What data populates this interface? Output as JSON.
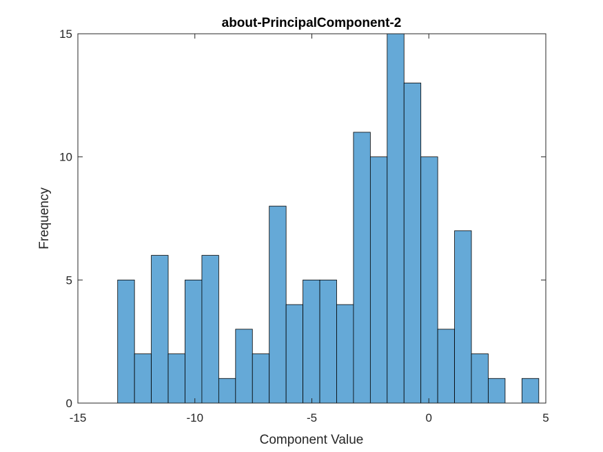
{
  "chart_data": {
    "type": "bar",
    "title": "about-PrincipalComponent-2",
    "xlabel": "Component Value",
    "ylabel": "Frequency",
    "xlim": [
      -15,
      5
    ],
    "ylim": [
      0,
      15
    ],
    "xticks": [
      "-15",
      "-10",
      "-5",
      "0",
      "5"
    ],
    "yticks": [
      "0",
      "5",
      "10",
      "15"
    ],
    "bin_width": 0.72,
    "bin_start": -13.3,
    "values": [
      5,
      2,
      6,
      2,
      5,
      6,
      1,
      3,
      2,
      8,
      4,
      5,
      5,
      4,
      11,
      10,
      15,
      13,
      10,
      3,
      7,
      2,
      1,
      0,
      1
    ],
    "grid": false,
    "bar_color": "#65a9d7",
    "edge_color": "#000000"
  }
}
